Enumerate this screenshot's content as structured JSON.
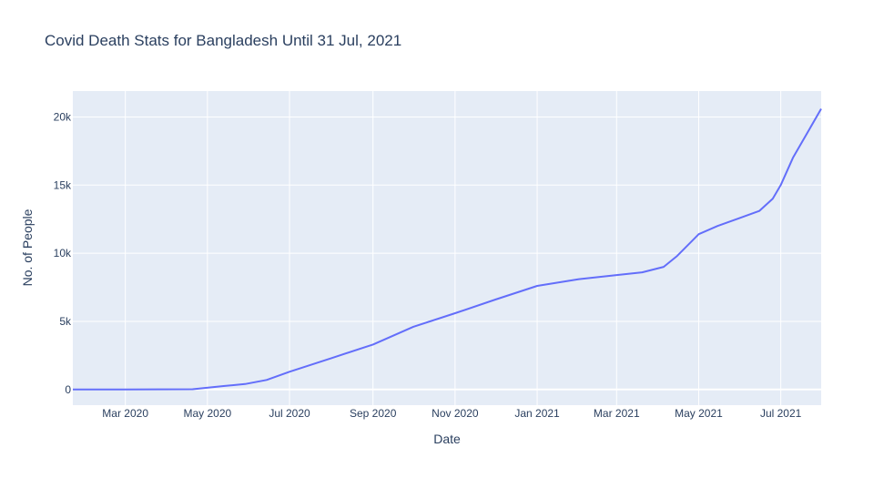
{
  "chart_data": {
    "type": "line",
    "title": "Covid Death Stats for Bangladesh Until 31 Jul, 2021",
    "xlabel": "Date",
    "ylabel": "No. of People",
    "xlim": [
      "2020-01-22",
      "2021-07-31"
    ],
    "ylim": [
      -1150,
      21900
    ],
    "grid": true,
    "colors": {
      "plot_bg": "#e5ecf6",
      "grid": "#ffffff",
      "line": "#636efa",
      "text": "#2a3f5f"
    },
    "x_ticks": [
      {
        "value": "2020-03-01",
        "label": "Mar 2020"
      },
      {
        "value": "2020-05-01",
        "label": "May 2020"
      },
      {
        "value": "2020-07-01",
        "label": "Jul 2020"
      },
      {
        "value": "2020-09-01",
        "label": "Sep 2020"
      },
      {
        "value": "2020-11-01",
        "label": "Nov 2020"
      },
      {
        "value": "2021-01-01",
        "label": "Jan 2021"
      },
      {
        "value": "2021-03-01",
        "label": "Mar 2021"
      },
      {
        "value": "2021-05-01",
        "label": "May 2021"
      },
      {
        "value": "2021-07-01",
        "label": "Jul 2021"
      }
    ],
    "y_ticks": [
      {
        "value": 0,
        "label": "0"
      },
      {
        "value": 5000,
        "label": "5k"
      },
      {
        "value": 10000,
        "label": "10k"
      },
      {
        "value": 15000,
        "label": "15k"
      },
      {
        "value": 20000,
        "label": "20k"
      }
    ],
    "series": [
      {
        "values": [
          {
            "x": "2020-01-22",
            "y": 0
          },
          {
            "x": "2020-03-01",
            "y": 0
          },
          {
            "x": "2020-04-20",
            "y": 20
          },
          {
            "x": "2020-05-13",
            "y": 250
          },
          {
            "x": "2020-05-29",
            "y": 400
          },
          {
            "x": "2020-06-14",
            "y": 700
          },
          {
            "x": "2020-07-01",
            "y": 1300
          },
          {
            "x": "2020-08-01",
            "y": 2300
          },
          {
            "x": "2020-09-01",
            "y": 3300
          },
          {
            "x": "2020-10-01",
            "y": 4600
          },
          {
            "x": "2020-11-01",
            "y": 5600
          },
          {
            "x": "2020-12-01",
            "y": 6600
          },
          {
            "x": "2021-01-01",
            "y": 7600
          },
          {
            "x": "2021-02-01",
            "y": 8100
          },
          {
            "x": "2021-03-01",
            "y": 8400
          },
          {
            "x": "2021-03-20",
            "y": 8600
          },
          {
            "x": "2021-04-05",
            "y": 9000
          },
          {
            "x": "2021-04-15",
            "y": 9800
          },
          {
            "x": "2021-05-01",
            "y": 11400
          },
          {
            "x": "2021-05-15",
            "y": 12000
          },
          {
            "x": "2021-06-01",
            "y": 12600
          },
          {
            "x": "2021-06-15",
            "y": 13100
          },
          {
            "x": "2021-06-25",
            "y": 14000
          },
          {
            "x": "2021-07-01",
            "y": 15000
          },
          {
            "x": "2021-07-10",
            "y": 17000
          },
          {
            "x": "2021-07-31",
            "y": 20600
          }
        ]
      }
    ]
  }
}
